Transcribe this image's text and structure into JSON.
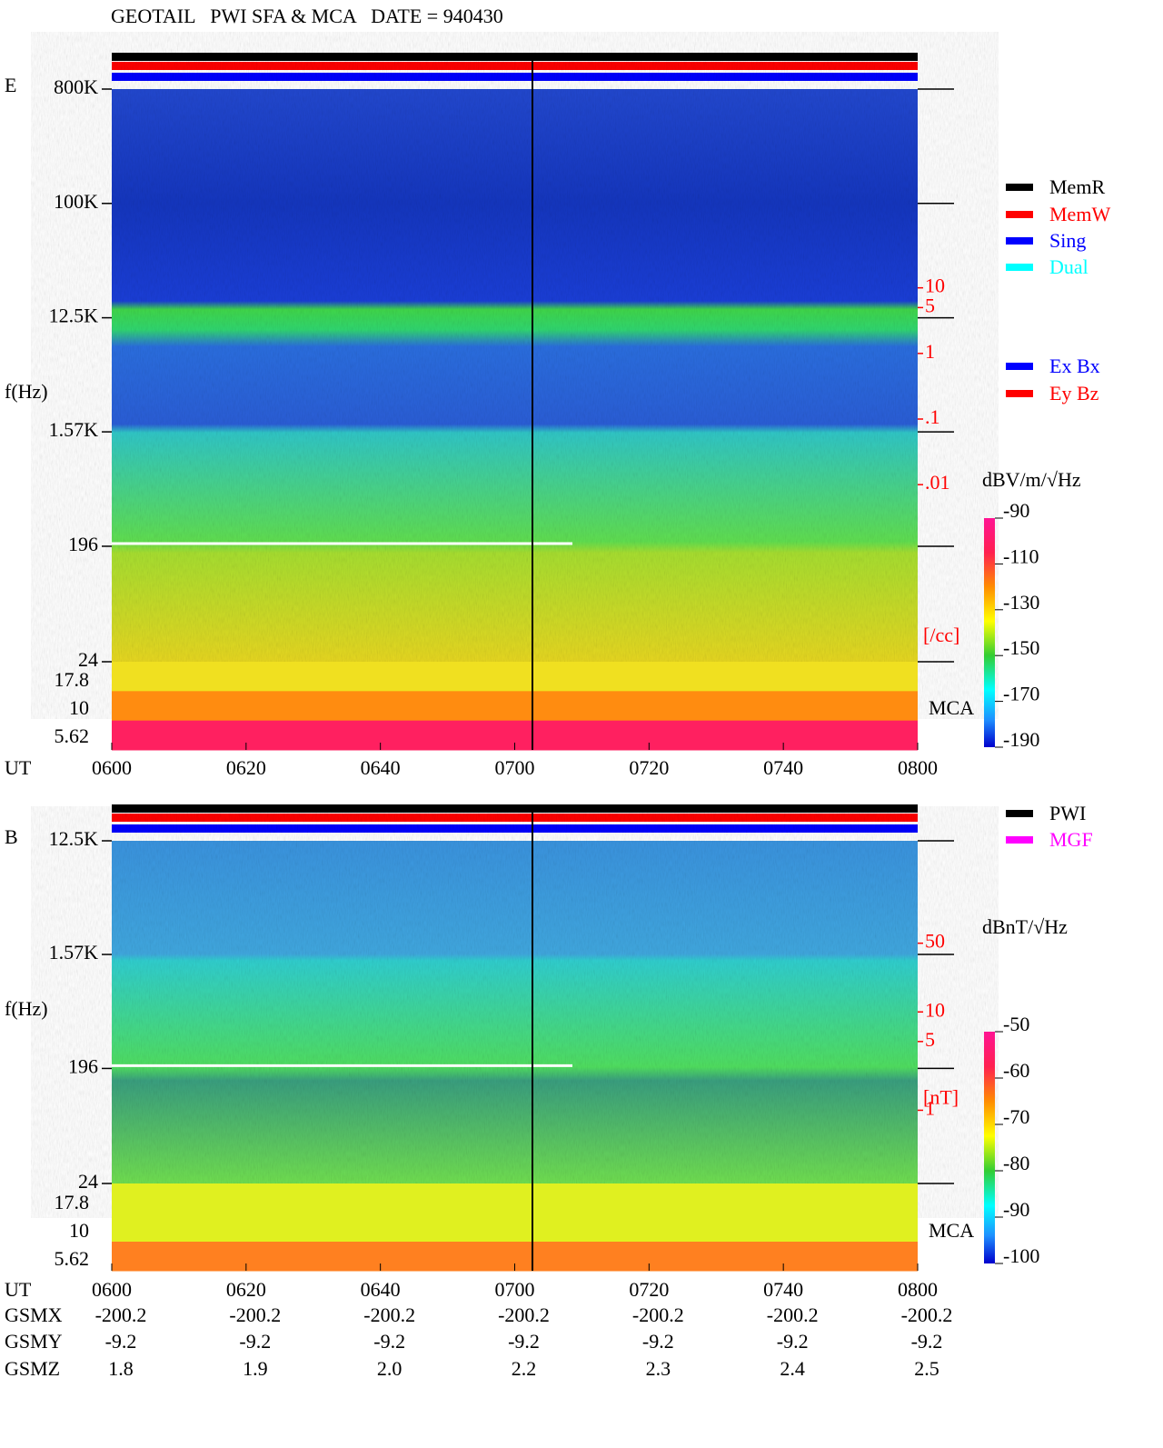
{
  "header": {
    "title": "GEOTAIL   PWI SFA & MCA   DATE = 940430"
  },
  "chart_data": [
    {
      "type": "spectrogram",
      "panel_label": "E",
      "y_label": "f(Hz)",
      "x_label": "UT",
      "log_y": true,
      "ylim": [
        24,
        800000
      ],
      "yticks": [
        {
          "value": 800000,
          "label": "800K"
        },
        {
          "value": 100000,
          "label": "100K"
        },
        {
          "value": 12500,
          "label": "12.5K"
        },
        {
          "value": 1570,
          "label": "1.57K"
        },
        196,
        24
      ],
      "mca_label": "MCA",
      "mca_ticks": [
        17.8,
        10,
        5.62
      ],
      "x_categories": [
        "0600",
        "0620",
        "0640",
        "0700",
        "0720",
        "0740",
        "0800"
      ],
      "y2lim": [
        2e-05,
        10700
      ],
      "y2_unit": "[/cc]",
      "y2ticks": [
        10,
        5,
        1,
        {
          "value": 0.1,
          "label": ".1"
        },
        {
          "value": 0.01,
          "label": ".01"
        }
      ],
      "colorbar_label": "dBV/m/√Hz",
      "zlim": [
        -190,
        -90
      ],
      "zticks": [
        -90,
        -110,
        -130,
        -150,
        -170,
        -190
      ],
      "legend": [
        {
          "name": "MemR",
          "color": "#000000"
        },
        {
          "name": "MemW",
          "color": "#ff0000"
        },
        {
          "name": "Sing",
          "color": "#0000ff"
        },
        {
          "name": "Dual",
          "color": "#00ffff"
        }
      ],
      "legend2": [
        {
          "name": "Ex Bx",
          "color": "#0000ff"
        },
        {
          "name": "Ey Bz",
          "color": "#ff0000"
        }
      ]
    },
    {
      "type": "spectrogram",
      "panel_label": "B",
      "y_label": "f(Hz)",
      "x_label": "UT",
      "log_y": true,
      "ylim": [
        24,
        12500
      ],
      "yticks": [
        {
          "value": 12500,
          "label": "12.5K"
        },
        {
          "value": 1570,
          "label": "1.57K"
        },
        196,
        24
      ],
      "mca_label": "MCA",
      "mca_ticks": [
        17.8,
        10,
        5.62
      ],
      "x_categories": [
        "0600",
        "0620",
        "0640",
        "0700",
        "0720",
        "0740",
        "0800"
      ],
      "y2lim": [
        0.18,
        550
      ],
      "y2_unit": "[nT]",
      "y2ticks": [
        50,
        10,
        5,
        1
      ],
      "colorbar_label": "dBnT/√Hz",
      "zlim": [
        -100,
        -50
      ],
      "zticks": [
        -50,
        -60,
        -70,
        -80,
        -90,
        -100
      ],
      "legend": [
        {
          "name": "PWI",
          "color": "#000000"
        },
        {
          "name": "MGF",
          "color": "#ff00ff"
        }
      ]
    }
  ],
  "orbit": {
    "rows": [
      {
        "name": "GSMX",
        "values": [
          -200.2,
          -200.2,
          -200.2,
          -200.2,
          -200.2,
          -200.2,
          -200.2
        ]
      },
      {
        "name": "GSMY",
        "values": [
          -9.2,
          -9.2,
          -9.2,
          -9.2,
          -9.2,
          -9.2,
          -9.2
        ]
      },
      {
        "name": "GSMZ",
        "values": [
          1.8,
          1.9,
          2,
          2.2,
          2.3,
          2.4,
          2.5
        ],
        "value_labels": [
          "1.8",
          "1.9",
          "2.0",
          "2.2",
          "2.3",
          "2.4",
          "2.5"
        ]
      }
    ]
  }
}
